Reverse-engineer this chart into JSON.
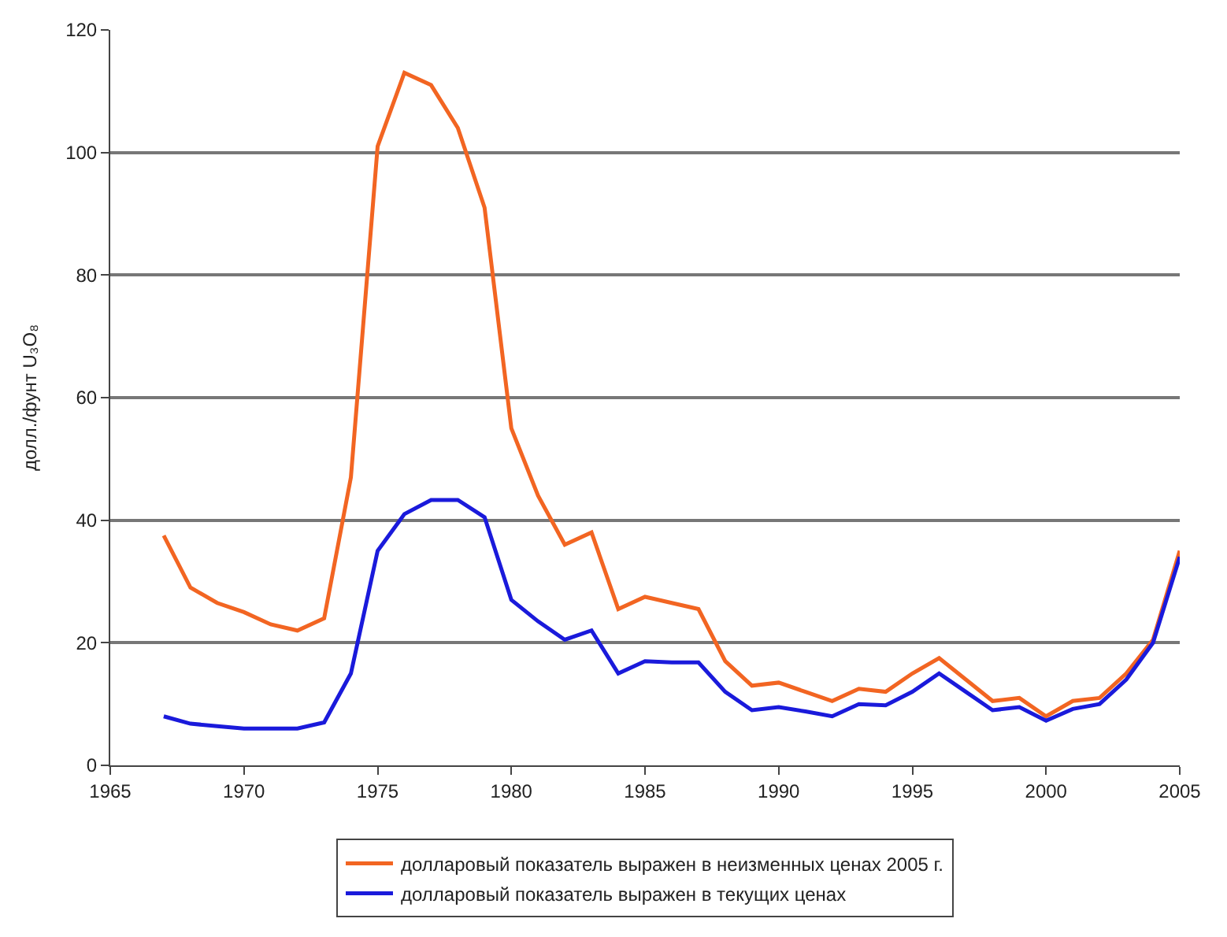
{
  "chart_data": {
    "type": "line",
    "ylabel": "долл./фунт U₃O₈",
    "x": [
      1967,
      1968,
      1969,
      1970,
      1971,
      1972,
      1973,
      1974,
      1975,
      1976,
      1977,
      1978,
      1979,
      1980,
      1981,
      1982,
      1983,
      1984,
      1985,
      1986,
      1987,
      1988,
      1989,
      1990,
      1991,
      1992,
      1993,
      1994,
      1995,
      1996,
      1997,
      1998,
      1999,
      2000,
      2001,
      2002,
      2003,
      2004,
      2005
    ],
    "series": [
      {
        "name": "долларовый показатель выражен в неизменных ценах 2005 г.",
        "color": "#f26522",
        "values": [
          37.5,
          29,
          26.5,
          25,
          23,
          22,
          24,
          47,
          101,
          113,
          111,
          104,
          91,
          55,
          44,
          36,
          38,
          25.5,
          27.5,
          26.5,
          25.5,
          17,
          13,
          13.5,
          12,
          10.5,
          12.5,
          12,
          15,
          17.5,
          14,
          10.5,
          11,
          8,
          10.5,
          11,
          15,
          20.5,
          35
        ]
      },
      {
        "name": "долларовый показатель выражен в текущих ценах",
        "color": "#1a1adb",
        "values": [
          8,
          6.8,
          6.4,
          6,
          6,
          6,
          7,
          15,
          35,
          41,
          43.3,
          43.3,
          40.5,
          27,
          23.5,
          20.5,
          22,
          15,
          17,
          16.8,
          16.8,
          12,
          9,
          9.5,
          8.8,
          8,
          10,
          9.8,
          12,
          15,
          12,
          9,
          9.5,
          7.3,
          9.2,
          10,
          14,
          20,
          34
        ]
      }
    ],
    "xlim": [
      1965,
      2005
    ],
    "xticks": [
      1965,
      1970,
      1975,
      1980,
      1985,
      1990,
      1995,
      2000,
      2005
    ],
    "ylim": [
      0,
      120
    ],
    "yticks": [
      0,
      20,
      40,
      60,
      80,
      100,
      120
    ],
    "grid": "y",
    "legend": "bottom",
    "marker": "none",
    "line_style": "solid"
  }
}
